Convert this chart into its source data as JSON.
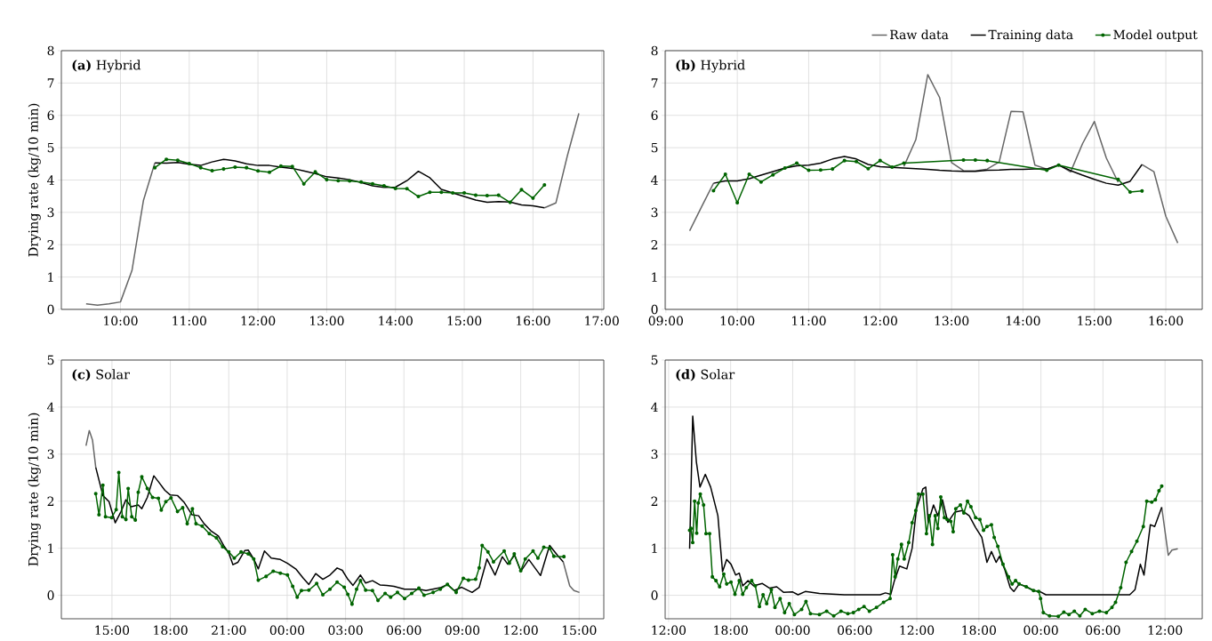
{
  "chart_data": [
    {
      "type": "line",
      "title": "**(a)** Hybrid",
      "ylabel": "Drying rate (kg/10 min)",
      "grid": true,
      "xlim": [
        9.14,
        17.03
      ],
      "ylim": [
        0,
        8
      ],
      "xticks": [
        {
          "value": 10,
          "label": "10:00"
        },
        {
          "value": 11,
          "label": "11:00"
        },
        {
          "value": 12,
          "label": "12:00"
        },
        {
          "value": 13,
          "label": "13:00"
        },
        {
          "value": 14,
          "label": "14:00"
        },
        {
          "value": 15,
          "label": "15:00"
        },
        {
          "value": 16,
          "label": "16:00"
        },
        {
          "value": 17,
          "label": "17:00"
        }
      ],
      "yticks": [
        0,
        1,
        2,
        3,
        4,
        5,
        6,
        7,
        8
      ],
      "x": [
        10.5,
        10.667,
        10.833,
        11,
        11.167,
        11.333,
        11.5,
        11.667,
        11.833,
        12,
        12.167,
        12.333,
        12.5,
        12.667,
        12.833,
        13,
        13.167,
        13.333,
        13.5,
        13.667,
        13.833,
        14,
        14.167,
        14.333,
        14.5,
        14.667,
        14.833,
        15,
        15.167,
        15.333,
        15.5,
        15.667,
        15.833,
        16,
        16.167
      ],
      "series": [
        {
          "color": "#666666",
          "x": [
            9.5,
            9.667,
            9.833,
            10,
            10.167,
            10.333,
            10.5,
            10.667,
            16.167,
            16.333,
            16.5,
            16.667
          ],
          "values": [
            0.17,
            0.13,
            0.17,
            0.23,
            1.2,
            3.36,
            4.53,
            null,
            3.14,
            3.29,
            4.75,
            6.06
          ]
        },
        {
          "color": "#000000",
          "values": [
            4.53,
            4.52,
            4.54,
            4.49,
            4.45,
            4.56,
            4.64,
            4.59,
            4.5,
            4.45,
            4.45,
            4.4,
            4.36,
            4.28,
            4.2,
            4.1,
            4.06,
            4.01,
            3.92,
            3.82,
            3.77,
            3.78,
            3.98,
            4.27,
            4.07,
            3.71,
            3.6,
            3.49,
            3.38,
            3.31,
            3.33,
            3.32,
            3.23,
            3.2,
            3.14
          ]
        },
        {
          "color": "#006400",
          "marker": "circle",
          "values": [
            4.38,
            4.64,
            4.61,
            4.51,
            4.38,
            4.29,
            4.34,
            4.4,
            4.38,
            4.28,
            4.24,
            4.43,
            4.42,
            3.88,
            4.25,
            4.01,
            3.98,
            3.97,
            3.94,
            3.88,
            3.82,
            3.74,
            3.73,
            3.49,
            3.62,
            3.62,
            3.6,
            3.6,
            3.53,
            3.52,
            3.53,
            3.31,
            3.7,
            3.44,
            3.85
          ]
        }
      ]
    },
    {
      "type": "line",
      "title": "**(b)** Hybrid",
      "grid": true,
      "legend": "top right",
      "xlim": [
        8.99,
        16.51
      ],
      "ylim": [
        0,
        8
      ],
      "xticks": [
        {
          "value": 9,
          "label": "09:00"
        },
        {
          "value": 10,
          "label": "10:00"
        },
        {
          "value": 11,
          "label": "11:00"
        },
        {
          "value": 12,
          "label": "12:00"
        },
        {
          "value": 13,
          "label": "13:00"
        },
        {
          "value": 14,
          "label": "14:00"
        },
        {
          "value": 15,
          "label": "15:00"
        },
        {
          "value": 16,
          "label": "16:00"
        }
      ],
      "yticks": [
        0,
        1,
        2,
        3,
        4,
        5,
        6,
        7,
        8
      ],
      "series": [
        {
          "name": "Raw data",
          "color": "#666666",
          "x": [
            9.333,
            9.5,
            9.667,
            9.833,
            12.333,
            12.5,
            12.667,
            12.833,
            13,
            13.167,
            13.333,
            13.5,
            13.667,
            13.833,
            14,
            14.167,
            14.333,
            14.5,
            14.667,
            14.833,
            15,
            15.167,
            15.333,
            15.5,
            15.667,
            15.833,
            16,
            16.167
          ],
          "values": [
            2.43,
            3.17,
            3.9,
            null,
            4.42,
            5.25,
            7.26,
            6.55,
            4.54,
            4.29,
            4.28,
            4.34,
            4.56,
            6.12,
            6.11,
            4.46,
            4.34,
            4.47,
            4.25,
            5.12,
            5.81,
            4.68,
            3.93,
            null,
            4.48,
            4.26,
            2.88,
            2.05
          ]
        },
        {
          "name": "Training data",
          "color": "#000000",
          "x": [
            9.667,
            9.833,
            10,
            10.167,
            10.333,
            10.5,
            10.667,
            10.833,
            11,
            11.167,
            11.333,
            11.5,
            11.667,
            11.833,
            12,
            12.167,
            12.333,
            12.5,
            12.667,
            12.833,
            13,
            13.167,
            13.333,
            13.5,
            13.667,
            13.833,
            14,
            14.167,
            14.333,
            14.5,
            14.667,
            14.833,
            15,
            15.167,
            15.333,
            15.5,
            15.667
          ],
          "values": [
            3.9,
            3.97,
            3.97,
            4.04,
            4.15,
            4.26,
            4.37,
            4.44,
            4.46,
            4.52,
            4.65,
            4.73,
            4.65,
            4.48,
            4.41,
            4.39,
            4.37,
            4.35,
            4.33,
            4.3,
            4.28,
            4.27,
            4.27,
            4.3,
            4.31,
            4.33,
            4.33,
            4.34,
            4.34,
            4.46,
            4.29,
            4.15,
            4.02,
            3.9,
            3.84,
            3.96,
            4.48
          ]
        },
        {
          "name": "Model output",
          "color": "#006400",
          "marker": "circle",
          "x": [
            9.667,
            9.833,
            10,
            10.167,
            10.333,
            10.5,
            10.667,
            10.833,
            11,
            11.167,
            11.333,
            11.5,
            11.667,
            11.833,
            12,
            12.167,
            12.333,
            13.167,
            13.333,
            13.5,
            14.333,
            14.5,
            15.333,
            15.5,
            15.667
          ],
          "values": [
            3.67,
            4.18,
            3.3,
            4.18,
            3.94,
            4.16,
            4.37,
            4.52,
            4.3,
            4.31,
            4.34,
            4.6,
            4.57,
            4.35,
            4.6,
            4.4,
            4.52,
            4.62,
            4.62,
            4.6,
            4.3,
            4.46,
            4.02,
            3.63,
            3.66
          ]
        }
      ]
    },
    {
      "type": "line",
      "title": "**(c)** Solar",
      "ylabel": "Drying rate (kg/10 min)",
      "grid": true,
      "xlim": [
        "--01-01T12:24",
        "--01-02T16:16"
      ],
      "ylim": [
        -0.5,
        5
      ],
      "xticks": [
        {
          "value": "--01-01T15:00",
          "label": "15:00"
        },
        {
          "value": "--01-01T18:00",
          "label": "18:00"
        },
        {
          "value": "--01-01T21:00",
          "label": "21:00"
        },
        {
          "value": "--01-02T00:00",
          "label": "00:00"
        },
        {
          "value": "--01-02T03:00",
          "label": "03:00"
        },
        {
          "value": "--01-02T06:00",
          "label": "06:00"
        },
        {
          "value": "--01-02T09:00",
          "label": "09:00"
        },
        {
          "value": "--01-02T12:00",
          "label": "12:00"
        },
        {
          "value": "--01-02T15:00",
          "label": "15:00"
        }
      ],
      "yticks": [
        0,
        1,
        2,
        3,
        4,
        5
      ],
      "series": [
        {
          "color": "#666666",
          "x": [
            "--01-01T13:40",
            "--01-01T13:50",
            "--01-01T14:00",
            "--01-01T14:10",
            "--01-01T14:18",
            "--01-02T14:11",
            "--01-02T14:31",
            "--01-02T14:44",
            "--01-02T15:01"
          ],
          "values": [
            3.18,
            3.5,
            3.3,
            2.72,
            null,
            0.71,
            0.2,
            0.1,
            0.06
          ]
        },
        {
          "color": "#000000",
          "x": [
            "--01-01T14:10",
            "--01-01T14:32",
            "--01-01T14:51",
            "--01-01T15:10",
            "--01-01T15:28",
            "--01-01T15:43",
            "--01-01T15:59",
            "--01-01T16:21",
            "--01-01T16:32",
            "--01-01T16:49",
            "--01-01T17:09",
            "--01-01T17:27",
            "--01-01T17:43",
            "--01-01T18:00",
            "--01-01T18:22",
            "--01-01T18:43",
            "--01-01T19:07",
            "--01-01T19:27",
            "--01-01T19:44",
            "--01-01T20:05",
            "--01-01T20:28",
            "--01-01T20:44",
            "--01-01T21:00",
            "--01-01T21:13",
            "--01-01T21:28",
            "--01-01T21:49",
            "--01-01T22:00",
            "--01-01T22:17",
            "--01-01T22:31",
            "--01-01T22:50",
            "--01-01T23:11",
            "--01-01T23:39",
            "--01-02T00:01",
            "--01-02T00:28",
            "--01-02T00:50",
            "--01-02T01:07",
            "--01-02T01:28",
            "--01-02T01:50",
            "--01-02T02:12",
            "--01-02T02:34",
            "--01-02T02:50",
            "--01-02T03:07",
            "--01-02T03:23",
            "--01-02T03:46",
            "--01-02T04:02",
            "--01-02T04:23",
            "--01-02T04:46",
            "--01-02T05:07",
            "--01-02T05:29",
            "--01-02T06:02",
            "--01-02T06:46",
            "--01-02T07:08",
            "--01-02T07:52",
            "--01-02T08:14",
            "--01-02T08:35",
            "--01-02T08:58",
            "--01-02T09:30",
            "--01-02T09:52",
            "--01-02T10:16",
            "--01-02T10:41",
            "--01-02T11:03",
            "--01-02T11:20",
            "--01-02T11:41",
            "--01-02T12:00",
            "--01-02T12:25",
            "--01-02T13:01",
            "--01-02T13:29",
            "--01-02T13:53",
            "--01-02T14:11"
          ],
          "values": [
            2.72,
            2.12,
            1.99,
            1.54,
            1.78,
            2.03,
            1.88,
            1.92,
            1.84,
            2.08,
            2.54,
            2.38,
            2.23,
            2.13,
            2.12,
            1.97,
            1.71,
            1.69,
            1.52,
            1.37,
            1.26,
            1.06,
            0.9,
            0.65,
            0.7,
            0.95,
            0.96,
            0.77,
            0.56,
            0.94,
            0.79,
            0.76,
            0.68,
            0.55,
            0.36,
            0.23,
            0.46,
            0.34,
            0.43,
            0.58,
            0.53,
            0.34,
            0.21,
            0.43,
            0.26,
            0.31,
            0.22,
            0.21,
            0.19,
            0.13,
            0.13,
            0.1,
            0.16,
            0.23,
            0.1,
            0.17,
            0.06,
            0.17,
            0.77,
            0.43,
            0.82,
            0.66,
            0.85,
            0.51,
            0.76,
            0.42,
            1.06,
            0.85,
            0.71
          ]
        },
        {
          "color": "#006400",
          "marker": "circle",
          "x": [
            "--01-01T14:10",
            "--01-01T14:20",
            "--01-01T14:32",
            "--01-01T14:40",
            "--01-01T14:59",
            "--01-01T15:13",
            "--01-01T15:21",
            "--01-01T15:32",
            "--01-01T15:43",
            "--01-01T15:50",
            "--01-01T16:01",
            "--01-01T16:12",
            "--01-01T16:21",
            "--01-01T16:32",
            "--01-01T16:49",
            "--01-01T17:05",
            "--01-01T17:23",
            "--01-01T17:32",
            "--01-01T17:46",
            "--01-01T18:02",
            "--01-01T18:22",
            "--01-01T18:38",
            "--01-01T18:52",
            "--01-01T19:08",
            "--01-01T19:19",
            "--01-01T19:38",
            "--01-01T20:00",
            "--01-01T20:22",
            "--01-01T20:41",
            "--01-01T21:00",
            "--01-01T21:17",
            "--01-01T21:38",
            "--01-01T22:00",
            "--01-01T22:17",
            "--01-01T22:31",
            "--01-01T22:55",
            "--01-01T23:17",
            "--01-01T23:39",
            "--01-02T00:01",
            "--01-02T00:17",
            "--01-02T00:31",
            "--01-02T00:44",
            "--01-02T01:07",
            "--01-02T01:31",
            "--01-02T01:50",
            "--01-02T02:12",
            "--01-02T02:34",
            "--01-02T02:56",
            "--01-02T03:07",
            "--01-02T03:20",
            "--01-02T03:34",
            "--01-02T03:46",
            "--01-02T04:02",
            "--01-02T04:23",
            "--01-02T04:40",
            "--01-02T05:02",
            "--01-02T05:19",
            "--01-02T05:40",
            "--01-02T06:02",
            "--01-02T06:24",
            "--01-02T06:46",
            "--01-02T07:02",
            "--01-02T07:30",
            "--01-02T07:52",
            "--01-02T08:14",
            "--01-02T08:41",
            "--01-02T09:03",
            "--01-02T09:19",
            "--01-02T09:41",
            "--01-02T09:52",
            "--01-02T10:01",
            "--01-02T10:19",
            "--01-02T10:36",
            "--01-02T11:09",
            "--01-02T11:25",
            "--01-02T11:40",
            "--01-02T12:00",
            "--01-02T12:14",
            "--01-02T12:38",
            "--01-02T12:53",
            "--01-02T13:11",
            "--01-02T13:29",
            "--01-02T13:42",
            "--01-02T14:13"
          ],
          "values": [
            2.16,
            1.71,
            2.34,
            1.67,
            1.65,
            1.82,
            2.61,
            1.67,
            1.61,
            2.27,
            1.67,
            1.6,
            2.19,
            2.52,
            2.27,
            2.08,
            2.06,
            1.81,
            1.99,
            2.07,
            1.78,
            1.86,
            1.52,
            1.84,
            1.52,
            1.47,
            1.31,
            1.22,
            1.03,
            0.92,
            0.79,
            0.92,
            0.88,
            0.77,
            0.32,
            0.4,
            0.51,
            0.47,
            0.43,
            0.19,
            -0.04,
            0.1,
            0.11,
            0.25,
            0.01,
            0.13,
            0.28,
            0.17,
            0.02,
            -0.19,
            0.13,
            0.31,
            0.11,
            0.1,
            -0.11,
            0.04,
            -0.04,
            0.06,
            -0.07,
            0.04,
            0.15,
            0.0,
            0.06,
            0.13,
            0.23,
            0.06,
            0.36,
            0.32,
            0.34,
            0.58,
            1.06,
            0.92,
            0.71,
            0.94,
            0.68,
            0.88,
            0.52,
            0.77,
            0.94,
            0.79,
            1.02,
            1.0,
            0.83,
            0.82
          ]
        }
      ]
    },
    {
      "type": "line",
      "title": "**(d)** Solar",
      "grid": true,
      "xlim": [
        "--01-01T11:40",
        "--01-03T15:36"
      ],
      "ylim": [
        -0.5,
        5
      ],
      "xticks": [
        {
          "value": "--01-01T12:00",
          "label": "12:00"
        },
        {
          "value": "--01-01T18:00",
          "label": "18:00"
        },
        {
          "value": "--01-02T00:00",
          "label": "00:00"
        },
        {
          "value": "--01-02T06:00",
          "label": "06:00"
        },
        {
          "value": "--01-02T12:00",
          "label": "12:00"
        },
        {
          "value": "--01-02T18:00",
          "label": "18:00"
        },
        {
          "value": "--01-03T00:00",
          "label": "00:00"
        },
        {
          "value": "--01-03T06:00",
          "label": "06:00"
        },
        {
          "value": "--01-03T12:00",
          "label": "12:00"
        }
      ],
      "yticks": [
        0,
        1,
        2,
        3,
        4,
        5
      ],
      "series": [
        {
          "color": "#666666",
          "x": [
            "--01-03T11:41",
            "--01-03T12:19",
            "--01-03T12:40",
            "--01-03T13:14"
          ],
          "values": [
            1.87,
            0.85,
            0.96,
            0.99
          ]
        },
        {
          "color": "#000000",
          "x": [
            "--01-01T14:02",
            "--01-01T14:20",
            "--01-01T14:41",
            "--01-01T15:02",
            "--01-01T15:33",
            "--01-01T16:04",
            "--01-01T16:46",
            "--01-01T17:13",
            "--01-01T17:37",
            "--01-01T18:02",
            "--01-01T18:29",
            "--01-01T18:50",
            "--01-01T19:10",
            "--01-01T19:41",
            "--01-01T20:13",
            "--01-01T21:04",
            "--01-01T21:46",
            "--01-01T22:27",
            "--01-01T23:08",
            "--01-02T00:00",
            "--01-02T00:31",
            "--01-02T01:13",
            "--01-02T02:35",
            "--01-02T05:00",
            "--01-02T08:27",
            "--01-02T08:58",
            "--01-02T09:29",
            "--01-02T09:50",
            "--01-02T10:20",
            "--01-02T11:02",
            "--01-02T11:33",
            "--01-02T11:58",
            "--01-02T12:35",
            "--01-02T12:52",
            "--01-02T13:06",
            "--01-02T13:37",
            "--01-02T14:02",
            "--01-02T14:29",
            "--01-02T15:00",
            "--01-02T15:41",
            "--01-02T16:23",
            "--01-02T17:04",
            "--01-02T17:41",
            "--01-02T18:17",
            "--01-02T18:47",
            "--01-02T19:13",
            "--01-02T19:40",
            "--01-02T20:00",
            "--01-02T20:31",
            "--01-02T21:02",
            "--01-02T21:23",
            "--01-02T21:54",
            "--01-02T22:35",
            "--01-02T23:17",
            "--01-02T23:54",
            "--01-03T00:29",
            "--01-03T03:25",
            "--01-03T07:13",
            "--01-03T08:35",
            "--01-03T09:06",
            "--01-03T09:37",
            "--01-03T09:58",
            "--01-03T10:35",
            "--01-03T11:00",
            "--01-03T11:41"
          ],
          "values": [
            0.99,
            3.81,
            2.84,
            2.3,
            2.57,
            2.3,
            1.69,
            0.5,
            0.76,
            0.66,
            0.43,
            0.47,
            0.2,
            0.31,
            0.2,
            0.25,
            0.15,
            0.18,
            0.06,
            0.07,
            0.01,
            0.08,
            0.04,
            0.01,
            0.01,
            0.05,
            0.02,
            0.31,
            0.62,
            0.56,
            1.0,
            1.84,
            2.26,
            2.3,
            1.54,
            1.92,
            1.69,
            2.03,
            1.55,
            1.77,
            1.8,
            1.69,
            1.44,
            1.23,
            0.7,
            0.93,
            0.7,
            0.83,
            0.54,
            0.16,
            0.08,
            0.24,
            0.18,
            0.1,
            0.08,
            0.01,
            0.01,
            0.01,
            0.01,
            0.12,
            0.66,
            0.43,
            1.5,
            1.46,
            1.87
          ]
        },
        {
          "color": "#006400",
          "marker": "circle",
          "x": [
            "--01-01T14:02",
            "--01-01T14:10",
            "--01-01T14:20",
            "--01-01T14:31",
            "--01-01T14:43",
            "--01-01T14:52",
            "--01-01T15:04",
            "--01-01T15:23",
            "--01-01T15:37",
            "--01-01T15:58",
            "--01-01T16:14",
            "--01-01T16:35",
            "--01-01T16:56",
            "--01-01T17:20",
            "--01-01T17:37",
            "--01-01T18:02",
            "--01-01T18:25",
            "--01-01T18:50",
            "--01-01T19:10",
            "--01-01T19:31",
            "--01-01T20:02",
            "--01-01T20:23",
            "--01-01T20:47",
            "--01-01T21:08",
            "--01-01T21:29",
            "--01-01T21:56",
            "--01-01T22:17",
            "--01-01T22:47",
            "--01-01T23:13",
            "--01-01T23:40",
            "--01-02T00:10",
            "--01-02T00:52",
            "--01-02T01:17",
            "--01-02T01:43",
            "--01-02T02:35",
            "--01-02T03:17",
            "--01-02T03:58",
            "--01-02T04:40",
            "--01-02T05:20",
            "--01-02T05:52",
            "--01-02T06:23",
            "--01-02T06:54",
            "--01-02T07:25",
            "--01-02T08:06",
            "--01-02T08:47",
            "--01-02T09:25",
            "--01-02T09:40",
            "--01-02T09:54",
            "--01-02T10:10",
            "--01-02T10:31",
            "--01-02T10:47",
            "--01-02T11:13",
            "--01-02T11:33",
            "--01-02T11:54",
            "--01-02T12:10",
            "--01-02T12:35",
            "--01-02T12:56",
            "--01-02T13:13",
            "--01-02T13:31",
            "--01-02T13:47",
            "--01-02T14:02",
            "--01-02T14:19",
            "--01-02T14:40",
            "--01-02T14:56",
            "--01-02T15:17",
            "--01-02T15:31",
            "--01-02T15:46",
            "--01-02T16:13",
            "--01-02T16:33",
            "--01-02T16:54",
            "--01-02T17:14",
            "--01-02T17:41",
            "--01-02T18:06",
            "--01-02T18:27",
            "--01-02T18:47",
            "--01-02T19:13",
            "--01-02T19:29",
            "--01-02T19:50",
            "--01-02T20:20",
            "--01-02T20:52",
            "--01-02T21:13",
            "--01-02T21:33",
            "--01-02T21:54",
            "--01-02T22:35",
            "--01-02T23:17",
            "--01-02T23:47",
            "--01-02T23:58",
            "--01-03T00:14",
            "--01-03T00:50",
            "--01-03T01:41",
            "--01-03T02:13",
            "--01-03T02:43",
            "--01-03T03:14",
            "--01-03T03:46",
            "--01-03T04:17",
            "--01-03T04:58",
            "--01-03T05:40",
            "--01-03T06:20",
            "--01-03T06:52",
            "--01-03T07:13",
            "--01-03T07:43",
            "--01-03T08:14",
            "--01-03T08:46",
            "--01-03T09:17",
            "--01-03T09:54",
            "--01-03T10:14",
            "--01-03T10:43",
            "--01-03T11:04",
            "--01-03T11:25",
            "--01-03T11:41"
          ],
          "values": [
            1.38,
            1.42,
            1.12,
            2.0,
            1.32,
            1.96,
            2.15,
            1.92,
            1.31,
            1.31,
            0.39,
            0.31,
            0.18,
            0.45,
            0.24,
            0.28,
            0.02,
            0.31,
            0.02,
            0.16,
            0.31,
            0.2,
            -0.24,
            0.01,
            -0.18,
            0.12,
            -0.26,
            -0.07,
            -0.37,
            -0.18,
            -0.41,
            -0.3,
            -0.13,
            -0.39,
            -0.41,
            -0.34,
            -0.44,
            -0.34,
            -0.39,
            -0.37,
            -0.3,
            -0.24,
            -0.34,
            -0.26,
            -0.15,
            -0.07,
            0.86,
            0.39,
            0.77,
            1.08,
            0.77,
            1.12,
            1.54,
            1.8,
            2.15,
            2.15,
            1.31,
            1.69,
            1.08,
            1.69,
            1.42,
            2.09,
            1.65,
            1.61,
            1.57,
            1.35,
            1.84,
            1.92,
            1.75,
            2.0,
            1.88,
            1.65,
            1.61,
            1.38,
            1.46,
            1.5,
            1.23,
            1.04,
            0.66,
            0.39,
            0.24,
            0.31,
            0.24,
            0.18,
            0.1,
            0.08,
            -0.07,
            -0.37,
            -0.44,
            -0.45,
            -0.36,
            -0.41,
            -0.34,
            -0.44,
            -0.3,
            -0.39,
            -0.34,
            -0.37,
            -0.26,
            -0.15,
            0.16,
            0.7,
            0.93,
            1.15,
            1.46,
            2.0,
            1.98,
            2.03,
            2.22,
            2.32
          ]
        }
      ]
    }
  ]
}
